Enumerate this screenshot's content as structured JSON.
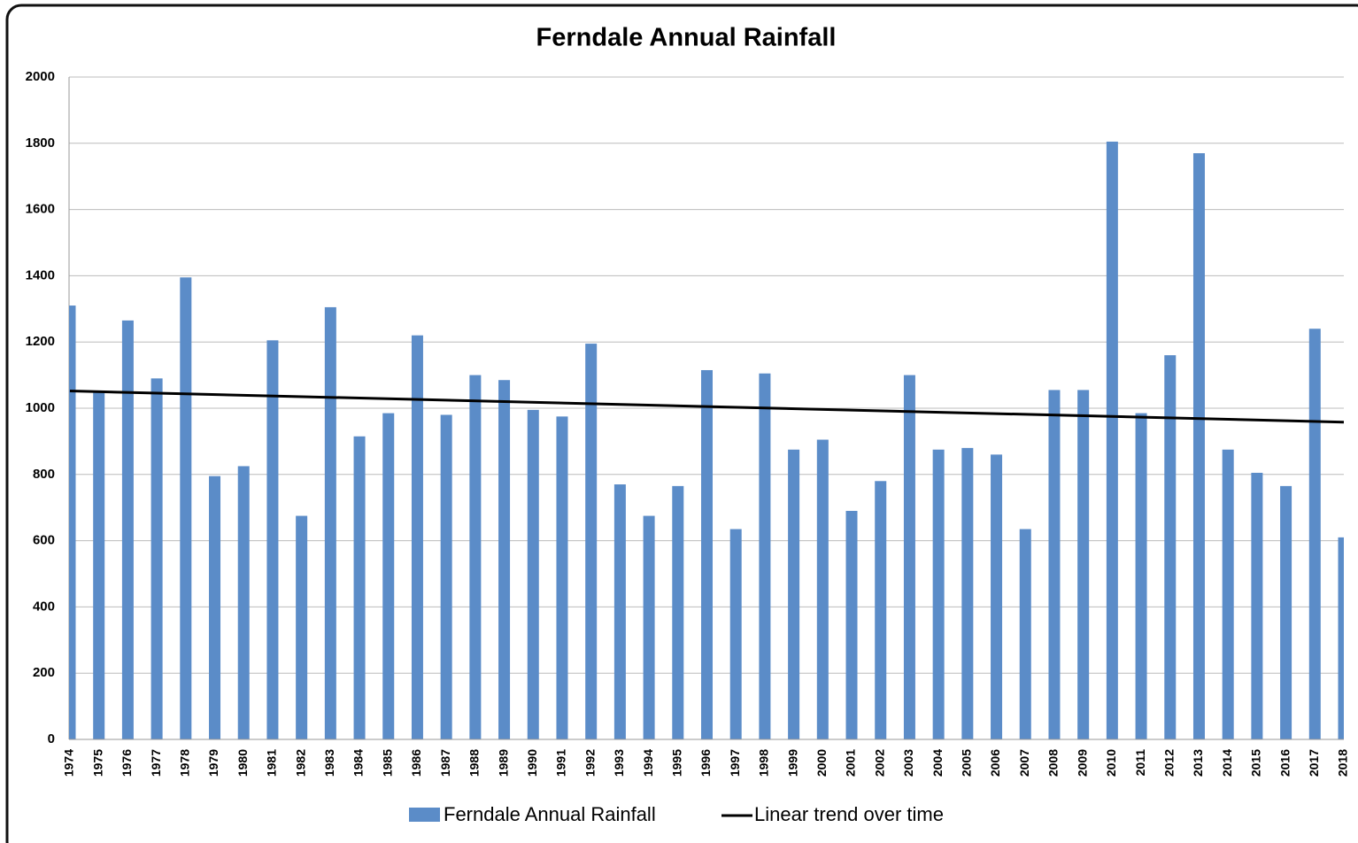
{
  "chart_data": {
    "type": "bar",
    "title": "Ferndale Annual Rainfall",
    "categories": [
      "1974",
      "1975",
      "1976",
      "1977",
      "1978",
      "1979",
      "1980",
      "1981",
      "1982",
      "1983",
      "1984",
      "1985",
      "1986",
      "1987",
      "1988",
      "1989",
      "1990",
      "1991",
      "1992",
      "1993",
      "1994",
      "1995",
      "1996",
      "1997",
      "1998",
      "1999",
      "2000",
      "2001",
      "2002",
      "2003",
      "2004",
      "2005",
      "2006",
      "2007",
      "2008",
      "2009",
      "2010",
      "2011",
      "2012",
      "2013",
      "2014",
      "2015",
      "2016",
      "2017",
      "2018"
    ],
    "series": [
      {
        "name": "Ferndale Annual Rainfall",
        "color": "#5b8cc8",
        "values": [
          1310,
          1050,
          1265,
          1090,
          1395,
          795,
          825,
          1205,
          675,
          1305,
          915,
          985,
          1220,
          980,
          1100,
          1085,
          995,
          975,
          1195,
          770,
          675,
          765,
          1115,
          635,
          1105,
          875,
          905,
          690,
          780,
          1100,
          875,
          880,
          860,
          635,
          1055,
          1055,
          1805,
          985,
          1160,
          1770,
          875,
          805,
          765,
          1240,
          610
        ]
      }
    ],
    "trendline": {
      "name": "Linear trend over time",
      "color": "#000000",
      "values": [
        1052,
        958
      ]
    },
    "ylim": [
      0,
      2000
    ],
    "yticks": [
      0,
      200,
      400,
      600,
      800,
      1000,
      1200,
      1400,
      1600,
      1800,
      2000
    ],
    "grid": true
  }
}
